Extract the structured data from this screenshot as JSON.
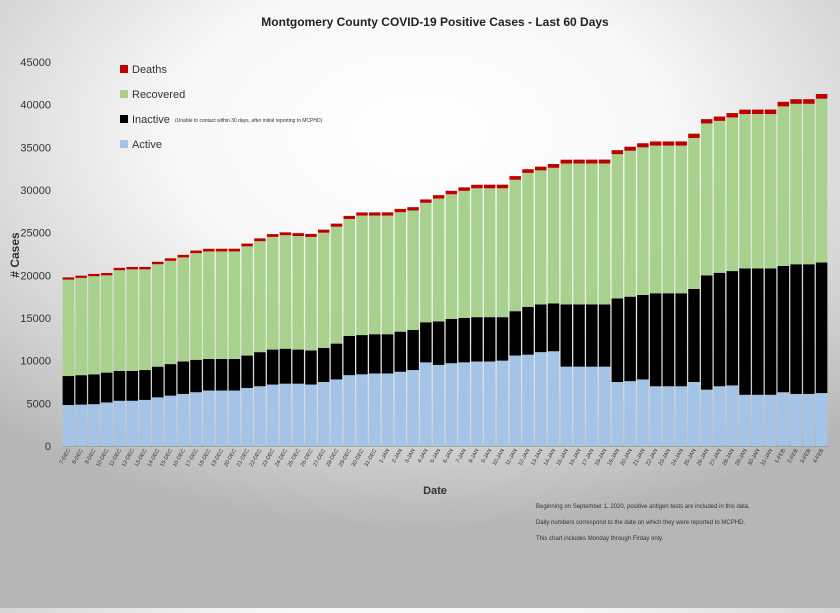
{
  "chart_data": {
    "type": "bar",
    "stacked": true,
    "title": "Montgomery County COVID-19 Positive Cases  - Last 60 Days",
    "xlabel": "Date",
    "ylabel": "# Cases",
    "ylim": [
      0,
      45000
    ],
    "yticks": [
      0,
      5000,
      10000,
      15000,
      20000,
      25000,
      30000,
      35000,
      40000,
      45000
    ],
    "ytick_labels": [
      "0",
      "5000",
      "10000",
      "15000",
      "20000",
      "25000",
      "30000",
      "35000",
      "40000",
      "45000"
    ],
    "grid": false,
    "legend_position": "top-left",
    "legend_inactive_note": "(Unable to contact within 30 days, after initial reporting to MCPHD)",
    "notes": [
      "Beginning on September 1, 2020, positive antigen tests are included in this data.",
      "Daily numbers correspond to the date on which they were reported to MCPHD.",
      "This chart includes Monday through Firday only."
    ],
    "categories": [
      "7-DEC",
      "8-DEC",
      "9-DEC",
      "10-DEC",
      "11-DEC",
      "12-DEC",
      "13-DEC",
      "14-DEC",
      "15-DEC",
      "16-DEC",
      "17-DEC",
      "18-DEC",
      "19-DEC",
      "20-DEC",
      "21-DEC",
      "22-DEC",
      "23-DEC",
      "24-DEC",
      "25-DEC",
      "26-DEC",
      "27-DEC",
      "28-DEC",
      "29-DEC",
      "30-DEC",
      "31-DEC",
      "1-JAN",
      "2-JAN",
      "3-JAN",
      "4-JAN",
      "5-JAN",
      "6-JAN",
      "7-JAN",
      "8-JAN",
      "9-JAN",
      "10-JAN",
      "11-JAN",
      "12-JAN",
      "13-JAN",
      "14-JAN",
      "15-JAN",
      "16-JAN",
      "17-JAN",
      "18-JAN",
      "19-JAN",
      "20-JAN",
      "21-JAN",
      "22-JAN",
      "23-JAN",
      "24-JAN",
      "25-JAN",
      "26-JAN",
      "27-JAN",
      "28-JAN",
      "29-JAN",
      "30-JAN",
      "31-JAN",
      "1-FEB",
      "2-FEB",
      "3-FEB",
      "4-FEB"
    ],
    "series": [
      {
        "name": "Active",
        "color": "#a3c4e6",
        "values": [
          4800,
          4850,
          4900,
          5100,
          5300,
          5300,
          5400,
          5700,
          5900,
          6100,
          6300,
          6500,
          6500,
          6500,
          6800,
          7000,
          7200,
          7300,
          7300,
          7200,
          7500,
          7800,
          8300,
          8400,
          8500,
          8500,
          8700,
          8900,
          9800,
          9500,
          9700,
          9800,
          9900,
          9900,
          10000,
          10600,
          10700,
          11000,
          11100,
          9300,
          9300,
          9300,
          9300,
          7500,
          7600,
          7800,
          7000,
          7000,
          7000,
          7500,
          6600,
          7000,
          7100,
          6000,
          6000,
          6000,
          6300,
          6100,
          6100,
          6200
        ]
      },
      {
        "name": "Inactive",
        "color": "#000000",
        "values": [
          3400,
          3450,
          3500,
          3500,
          3500,
          3500,
          3500,
          3600,
          3700,
          3800,
          3800,
          3700,
          3700,
          3700,
          3800,
          4000,
          4100,
          4100,
          4000,
          4000,
          4000,
          4200,
          4600,
          4600,
          4600,
          4600,
          4700,
          4700,
          4700,
          5100,
          5200,
          5200,
          5200,
          5200,
          5100,
          5200,
          5600,
          5600,
          5600,
          7300,
          7300,
          7300,
          7300,
          9800,
          9900,
          9900,
          10900,
          10900,
          10900,
          10900,
          13400,
          13300,
          13400,
          14800,
          14800,
          14800,
          14800,
          15200,
          15200,
          15300
        ]
      },
      {
        "name": "Recovered",
        "color": "#a9d18e",
        "values": [
          11300,
          11400,
          11500,
          11400,
          11800,
          11900,
          11800,
          12000,
          12100,
          12200,
          12500,
          12600,
          12600,
          12600,
          12800,
          13000,
          13200,
          13300,
          13300,
          13300,
          13500,
          13700,
          13700,
          14000,
          13900,
          13900,
          14000,
          14000,
          14000,
          14400,
          14600,
          14900,
          15100,
          15100,
          15100,
          15400,
          15700,
          15700,
          15900,
          16500,
          16500,
          16500,
          16500,
          16900,
          17100,
          17300,
          17300,
          17300,
          17300,
          17700,
          17800,
          17800,
          18000,
          18100,
          18100,
          18100,
          18700,
          18800,
          18800,
          19200
        ]
      },
      {
        "name": "Deaths",
        "color": "#c00000",
        "values": [
          260,
          260,
          265,
          270,
          275,
          280,
          285,
          290,
          295,
          300,
          305,
          310,
          315,
          320,
          325,
          330,
          335,
          340,
          345,
          350,
          355,
          360,
          365,
          370,
          375,
          380,
          385,
          390,
          395,
          400,
          405,
          410,
          415,
          420,
          425,
          430,
          435,
          440,
          445,
          450,
          455,
          460,
          465,
          470,
          475,
          480,
          485,
          490,
          495,
          500,
          505,
          510,
          515,
          520,
          525,
          530,
          535,
          540,
          545,
          550
        ]
      }
    ]
  }
}
